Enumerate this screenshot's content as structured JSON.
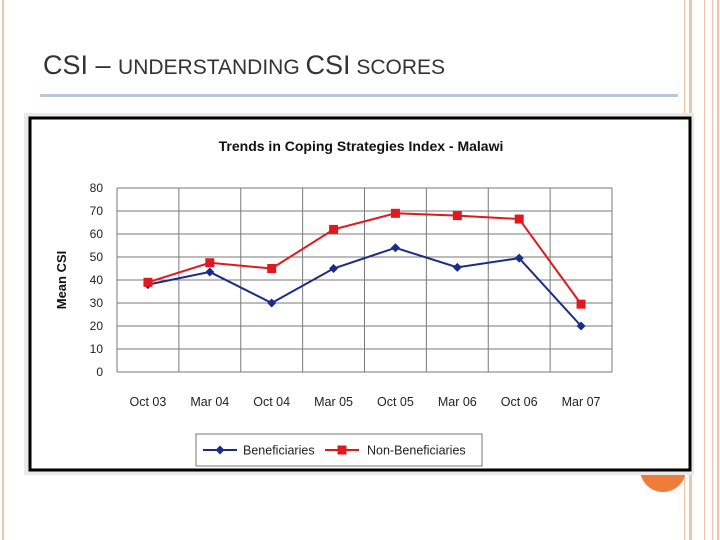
{
  "slide": {
    "title_prefix": "CSI – ",
    "title_main": "UNDERSTANDING ",
    "title_csi": "CSI",
    "title_suffix": " SCORES"
  },
  "colors": {
    "beneficiaries": "#1b2b8a",
    "non_beneficiaries": "#e0191f",
    "accent": "#f07c3a",
    "rule": "#b9c6dd"
  },
  "chart_data": {
    "type": "line",
    "title": "Trends in Coping Strategies Index - Malawi",
    "xlabel": "",
    "ylabel": "Mean CSI",
    "categories": [
      "Oct 03",
      "Mar 04",
      "Oct 04",
      "Mar 05",
      "Oct 05",
      "Mar 06",
      "Oct 06",
      "Mar 07"
    ],
    "ylim": [
      0,
      80
    ],
    "yticks": [
      0,
      10,
      20,
      30,
      40,
      50,
      60,
      70,
      80
    ],
    "grid": true,
    "legend_position": "bottom",
    "series": [
      {
        "name": "Beneficiaries",
        "marker": "diamond",
        "values": [
          38,
          43.5,
          30,
          45,
          54,
          45.5,
          49.5,
          20
        ]
      },
      {
        "name": "Non-Beneficiaries",
        "marker": "square",
        "values": [
          39,
          47.5,
          45,
          62,
          69,
          68,
          66.5,
          29.5
        ]
      }
    ]
  }
}
